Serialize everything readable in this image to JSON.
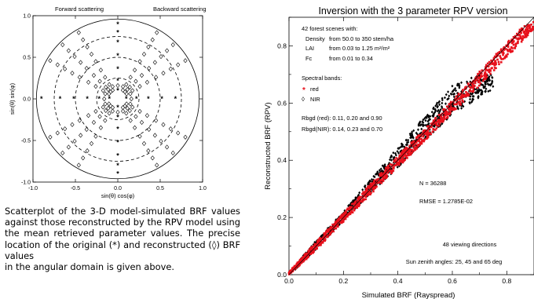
{
  "caption": {
    "text": "Scatterplot of the 3-D model-simulated BRF values against those reconstructed by the RPV model using the mean retrieved parameter values. The precise location of the original (*) and reconstructed (◊) BRF values",
    "last_line": "in the angular domain is given above."
  },
  "chart_data": [
    {
      "type": "scatter",
      "title_left": "Forward scattering",
      "title_right": "Backward scattering",
      "xlabel": "sin(θ) cos(φ)",
      "ylabel": "sin(θ) sin(φ)",
      "xlim": [
        -1.0,
        1.0
      ],
      "ylim": [
        -1.0,
        1.0
      ],
      "xticks": [
        "-1.0",
        "-0.5",
        "0.0",
        "0.5",
        "1.0"
      ],
      "yticks": [
        "-1.0",
        "-0.5",
        "0.0",
        "0.5",
        "1.0"
      ],
      "circles": [
        0.25,
        0.5,
        0.75,
        0.96
      ],
      "series": [
        {
          "marker": "*",
          "description": "original",
          "points": [
            [
              0,
              0.9
            ],
            [
              0,
              0.8
            ],
            [
              0,
              0.68
            ],
            [
              0,
              0.52
            ],
            [
              0,
              0.36
            ],
            [
              0,
              0.22
            ],
            [
              0,
              0.1
            ],
            [
              0,
              -0.1
            ],
            [
              0,
              -0.22
            ],
            [
              0,
              -0.36
            ],
            [
              0,
              -0.52
            ],
            [
              0,
              -0.68
            ],
            [
              0,
              -0.8
            ],
            [
              0,
              -0.9
            ],
            [
              -0.9,
              0
            ],
            [
              -0.68,
              0
            ],
            [
              -0.52,
              0
            ],
            [
              -0.36,
              0
            ],
            [
              -0.22,
              0
            ],
            [
              -0.1,
              0
            ],
            [
              0.1,
              0
            ],
            [
              0.22,
              0
            ],
            [
              0.36,
              0
            ],
            [
              0.52,
              0
            ],
            [
              0.68,
              0
            ]
          ]
        },
        {
          "marker": "◊",
          "description": "reconstructed",
          "points": []
        }
      ]
    },
    {
      "type": "scatter",
      "title": "Inversion with the 3 parameter RPV version",
      "xlabel": "Simulated BRF (Rayspread)",
      "ylabel": "Reconstructed BRF (RPV)",
      "xlim": [
        0.0,
        0.9
      ],
      "ylim": [
        0.0,
        0.9
      ],
      "xticks": [
        "0.0",
        "0.2",
        "0.4",
        "0.6",
        "0.8"
      ],
      "yticks": [
        "0.0",
        "0.2",
        "0.4",
        "0.6",
        "0.8"
      ],
      "legend": {
        "header": "42 forest scenes with:",
        "lines": [
          {
            "label": "Density",
            "value": "from 50.0 to 350 stem/ha"
          },
          {
            "label": "LAI",
            "value": "from 0.03 to 1.25 m²/m²"
          },
          {
            "label": "Fc",
            "value": "from 0.01 to 0.34"
          }
        ],
        "bands_header": "Spectral bands:",
        "series": [
          {
            "name": "red",
            "marker": "*",
            "color": "#e8111c"
          },
          {
            "name": "NIR",
            "marker": "◊",
            "color": "#000000"
          }
        ],
        "rbgd_red": "Rbgd (red): 0.11, 0.20 and 0.90",
        "rbgd_nir": "Rbgd(NIR): 0.14, 0.23 and 0.70"
      },
      "stats": {
        "n": "N = 36288",
        "rmse": "RMSE = 1.2785E-02"
      },
      "footer": {
        "directions": "48 viewing directions",
        "sun": "Sun zenith angles: 25, 45 and 65 deg"
      },
      "nir_envelope": {
        "x": [
          0.02,
          0.1,
          0.2,
          0.3,
          0.4,
          0.5,
          0.6,
          0.7,
          0.75
        ],
        "upper": [
          0.03,
          0.12,
          0.22,
          0.335,
          0.445,
          0.555,
          0.66,
          0.7,
          0.7
        ],
        "lower": [
          0.015,
          0.09,
          0.19,
          0.285,
          0.375,
          0.47,
          0.56,
          0.62,
          0.65
        ]
      },
      "red_envelope": {
        "x": [
          0.0,
          0.1,
          0.2,
          0.3,
          0.5,
          0.7,
          0.85,
          0.9
        ],
        "upper": [
          0.01,
          0.115,
          0.215,
          0.32,
          0.51,
          0.71,
          0.86,
          0.89
        ],
        "lower": [
          0.0,
          0.085,
          0.185,
          0.28,
          0.47,
          0.66,
          0.81,
          0.86
        ]
      },
      "reference_line": [
        [
          0.0,
          0.0
        ],
        [
          0.9,
          0.9
        ]
      ]
    }
  ]
}
